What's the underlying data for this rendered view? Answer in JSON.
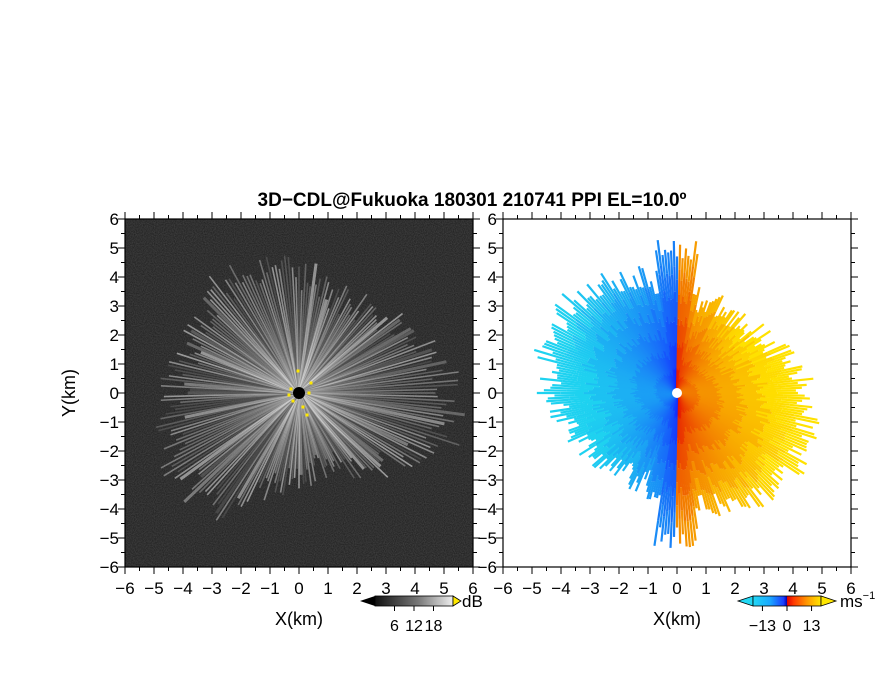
{
  "title": "3D−CDL@Fukuoka 180301 210741 PPI EL=10.0º",
  "chart_data": [
    {
      "type": "heatmap",
      "name": "intensity-ppi",
      "xlabel": "X(km)",
      "ylabel": "Y(km)",
      "xlim": [
        -6,
        6
      ],
      "ylim": [
        -6,
        6
      ],
      "xticks": [
        "−6",
        "−5",
        "−4",
        "−3",
        "−2",
        "−1",
        "0",
        "1",
        "2",
        "3",
        "4",
        "5",
        "6"
      ],
      "yticks": [
        "6",
        "5",
        "4",
        "3",
        "2",
        "1",
        "0",
        "−1",
        "−2",
        "−3",
        "−4",
        "−5",
        "−6"
      ],
      "colorbar": {
        "unit": "dB",
        "ticks": [
          "6",
          "12",
          "18"
        ],
        "tick_values": [
          6,
          12,
          18
        ],
        "range": [
          0,
          24
        ]
      },
      "colors": {
        "background": "#1a1a1a",
        "high": "#ffffff",
        "marker": "#ffe800"
      }
    },
    {
      "type": "heatmap",
      "name": "doppler-velocity-ppi",
      "xlabel": "X(km)",
      "ylabel": "",
      "xlim": [
        -6,
        6
      ],
      "ylim": [
        -6,
        6
      ],
      "xticks": [
        "−6",
        "−5",
        "−4",
        "−3",
        "−2",
        "−1",
        "0",
        "1",
        "2",
        "3",
        "4",
        "5",
        "6"
      ],
      "yticks": [
        "6",
        "5",
        "4",
        "3",
        "2",
        "1",
        "0",
        "−1",
        "−2",
        "−3",
        "−4",
        "−5",
        "−6"
      ],
      "colorbar": {
        "unit": "ms",
        "unit_exp": "−1",
        "ticks": [
          "−13",
          "0",
          "13"
        ],
        "tick_values": [
          -13,
          0,
          13
        ],
        "range": [
          -18,
          18
        ]
      },
      "colors": {
        "negative": "#1a4cff",
        "negative_far": "#22d0f0",
        "positive": "#ff2a00",
        "positive_far": "#ffe800"
      }
    }
  ]
}
